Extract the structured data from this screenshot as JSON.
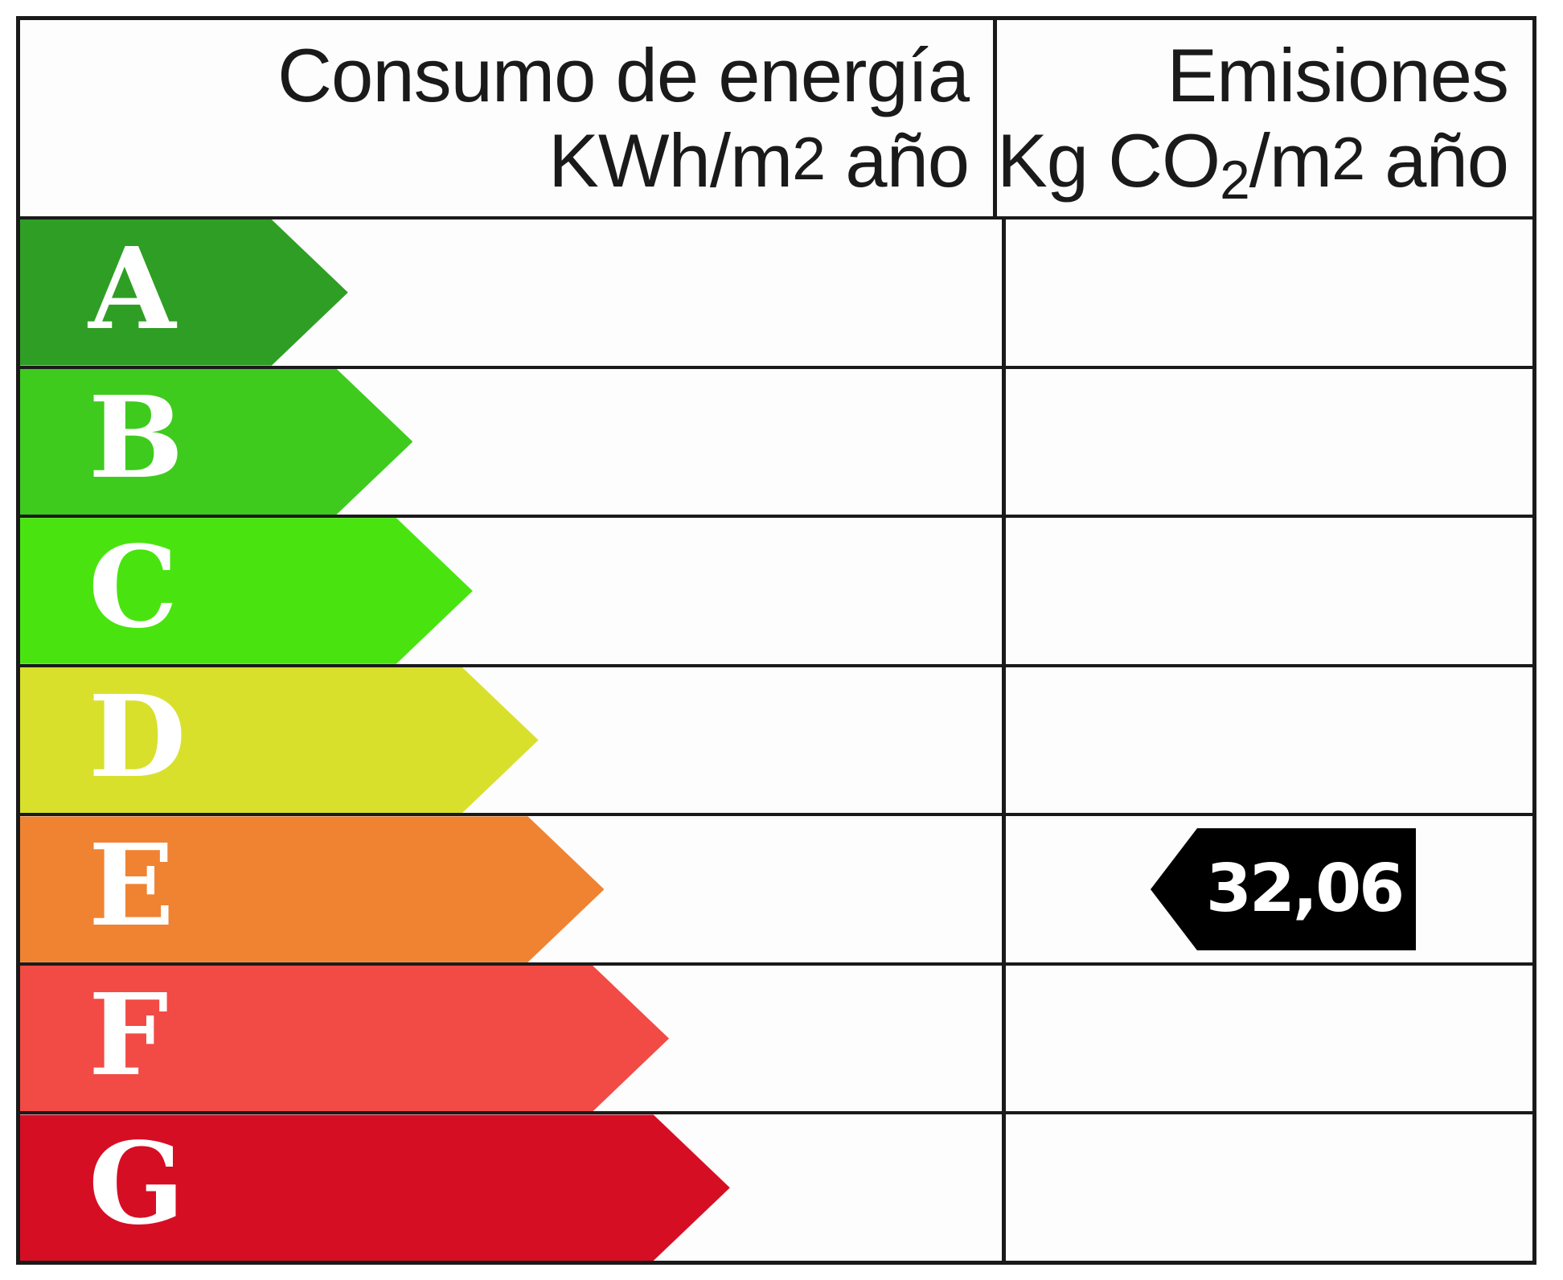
{
  "header": {
    "energy_column": {
      "line1": "Consumo de energía",
      "line2_base": "KWh/m",
      "line2_sup": "2",
      "line2_rest": " año"
    },
    "emissions_column": {
      "line1": "Emisiones",
      "line2_base": "Kg CO",
      "line2_sub": "2",
      "line2_mid": "/m",
      "line2_sup": "2",
      "line2_rest": " año"
    }
  },
  "bands": [
    {
      "letter": "A",
      "color": "#2f9e25",
      "width_pct": 33.4
    },
    {
      "letter": "B",
      "color": "#3ecb1e",
      "width_pct": 40.0
    },
    {
      "letter": "C",
      "color": "#49e410",
      "width_pct": 46.1
    },
    {
      "letter": "D",
      "color": "#d8e02c",
      "width_pct": 52.8
    },
    {
      "letter": "E",
      "color": "#ef8332",
      "width_pct": 59.5
    },
    {
      "letter": "F",
      "color": "#f24a44",
      "width_pct": 66.1
    },
    {
      "letter": "G",
      "color": "#d60e24",
      "width_pct": 72.3
    }
  ],
  "emissions_marker": {
    "value": "32,06",
    "band": "E",
    "bg_color": "#000000",
    "text_color": "#ffffff"
  },
  "grid_color": "#1a1a1a",
  "chart_data": {
    "type": "bar",
    "orientation": "horizontal",
    "title": "",
    "categories": [
      "A",
      "B",
      "C",
      "D",
      "E",
      "F",
      "G"
    ],
    "values": [
      33.4,
      40.0,
      46.1,
      52.8,
      59.5,
      66.1,
      72.3
    ],
    "value_unit": "band arrow length, % of energy column width",
    "band_colors": [
      "#2f9e25",
      "#3ecb1e",
      "#49e410",
      "#d8e02c",
      "#ef8332",
      "#f24a44",
      "#d60e24"
    ],
    "columns": [
      "Consumo de energía KWh/m2 año",
      "Emisiones Kg CO2/m2 año"
    ],
    "legend_position": "none",
    "grid": "table-borders",
    "annotations": [
      {
        "text": "32,06",
        "column": "Emisiones Kg CO2/m2 año",
        "row": "E",
        "style": "black left-pointing arrow, white bold text"
      }
    ]
  }
}
